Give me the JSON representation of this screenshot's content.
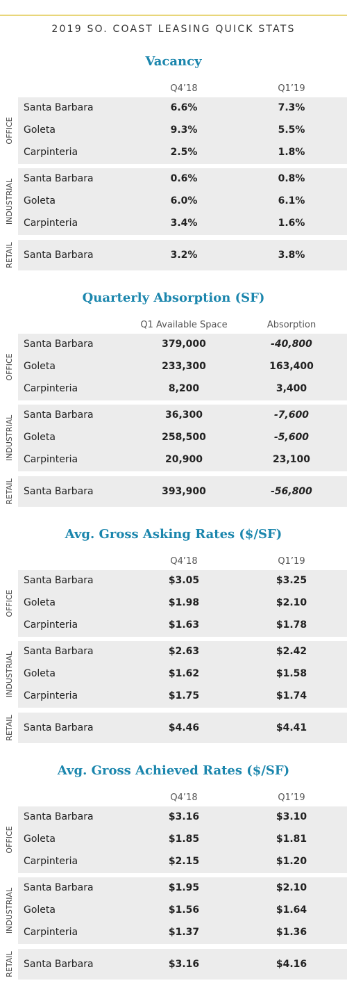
{
  "header": {
    "title": "2019 SO. COAST LEASING QUICK STATS"
  },
  "sections": [
    {
      "heading": "Vacancy",
      "columns": [
        "Q4’18",
        "Q1’19"
      ],
      "groups": [
        {
          "label": "OFFICE",
          "rows": [
            [
              "Santa Barbara",
              "6.6%",
              "7.3%"
            ],
            [
              "Goleta",
              "9.3%",
              "5.5%"
            ],
            [
              "Carpinteria",
              "2.5%",
              "1.8%"
            ]
          ]
        },
        {
          "label": "INDUSTRIAL",
          "rows": [
            [
              "Santa Barbara",
              "0.6%",
              "0.8%"
            ],
            [
              "Goleta",
              "6.0%",
              "6.1%"
            ],
            [
              "Carpinteria",
              "3.4%",
              "1.6%"
            ]
          ]
        },
        {
          "label": "RETAIL",
          "rows": [
            [
              "Santa Barbara",
              "3.2%",
              "3.8%"
            ]
          ]
        }
      ]
    },
    {
      "heading": "Quarterly Absorption (SF)",
      "columns": [
        "Q1 Available Space",
        "Absorption"
      ],
      "groups": [
        {
          "label": "OFFICE",
          "rows": [
            [
              "Santa Barbara",
              "379,000",
              "-40,800"
            ],
            [
              "Goleta",
              "233,300",
              "163,400"
            ],
            [
              "Carpinteria",
              "8,200",
              "3,400"
            ]
          ]
        },
        {
          "label": "INDUSTRIAL",
          "rows": [
            [
              "Santa Barbara",
              "36,300",
              "-7,600"
            ],
            [
              "Goleta",
              "258,500",
              "-5,600"
            ],
            [
              "Carpinteria",
              "20,900",
              "23,100"
            ]
          ]
        },
        {
          "label": "RETAIL",
          "rows": [
            [
              "Santa Barbara",
              "393,900",
              "-56,800"
            ]
          ]
        }
      ]
    },
    {
      "heading": "Avg. Gross Asking Rates ($/SF)",
      "columns": [
        "Q4’18",
        "Q1’19"
      ],
      "groups": [
        {
          "label": "OFFICE",
          "rows": [
            [
              "Santa Barbara",
              "$3.05",
              "$3.25"
            ],
            [
              "Goleta",
              "$1.98",
              "$2.10"
            ],
            [
              "Carpinteria",
              "$1.63",
              "$1.78"
            ]
          ]
        },
        {
          "label": "INDUSTRIAL",
          "rows": [
            [
              "Santa Barbara",
              "$2.63",
              "$2.42"
            ],
            [
              "Goleta",
              "$1.62",
              "$1.58"
            ],
            [
              "Carpinteria",
              "$1.75",
              "$1.74"
            ]
          ]
        },
        {
          "label": "RETAIL",
          "rows": [
            [
              "Santa Barbara",
              "$4.46",
              "$4.41"
            ]
          ]
        }
      ]
    },
    {
      "heading": "Avg. Gross Achieved Rates ($/SF)",
      "columns": [
        "Q4’18",
        "Q1’19"
      ],
      "groups": [
        {
          "label": "OFFICE",
          "rows": [
            [
              "Santa Barbara",
              "$3.16",
              "$3.10"
            ],
            [
              "Goleta",
              "$1.85",
              "$1.81"
            ],
            [
              "Carpinteria",
              "$2.15",
              "$1.20"
            ]
          ]
        },
        {
          "label": "INDUSTRIAL",
          "rows": [
            [
              "Santa Barbara",
              "$1.95",
              "$2.10"
            ],
            [
              "Goleta",
              "$1.56",
              "$1.64"
            ],
            [
              "Carpinteria",
              "$1.37",
              "$1.36"
            ]
          ]
        },
        {
          "label": "RETAIL",
          "rows": [
            [
              "Santa Barbara",
              "$3.16",
              "$4.16"
            ]
          ]
        }
      ]
    }
  ]
}
